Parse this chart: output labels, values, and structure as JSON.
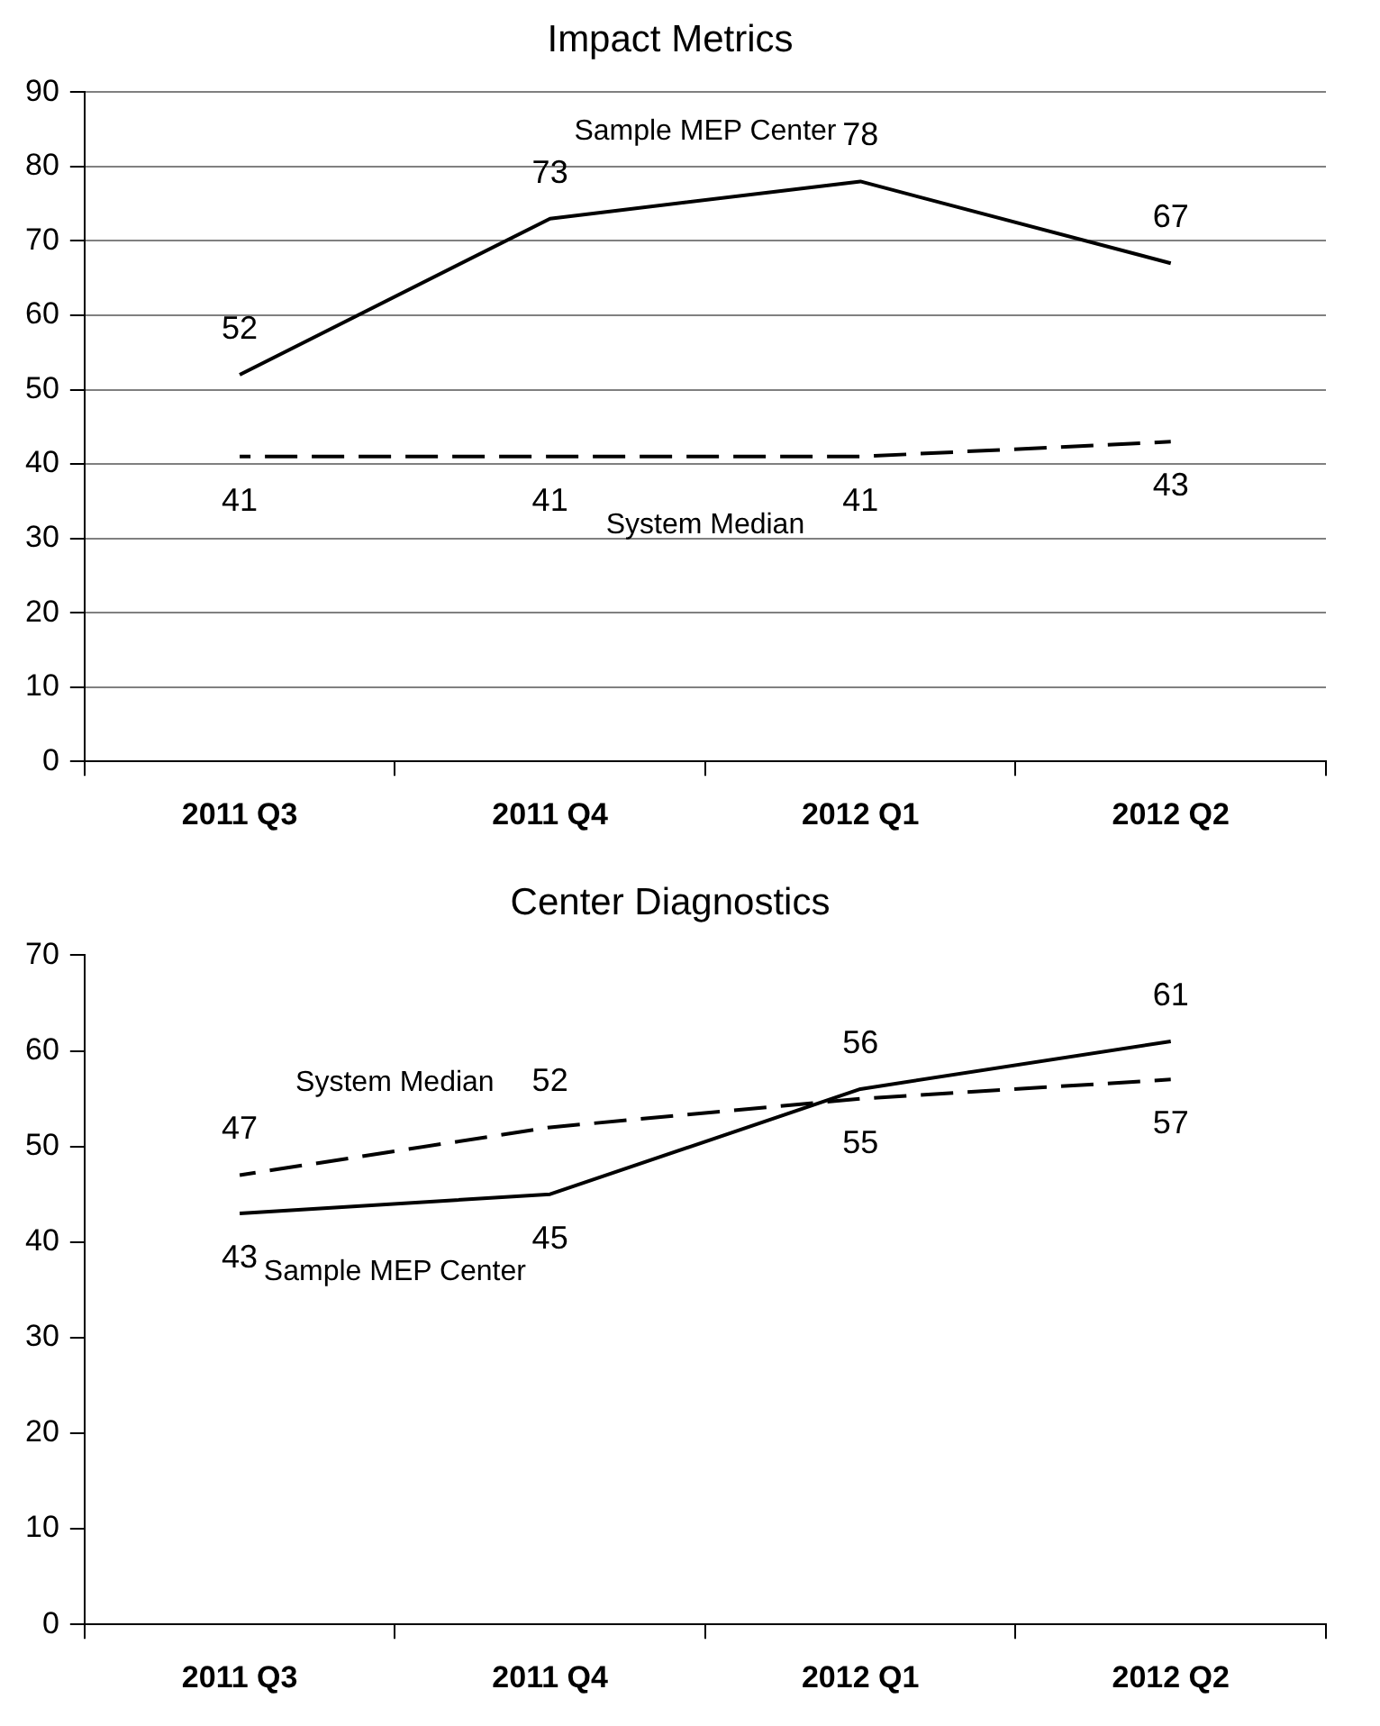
{
  "chart_data": [
    {
      "type": "line",
      "title": "Impact Metrics",
      "categories": [
        "2011 Q3",
        "2011 Q4",
        "2012 Q1",
        "2012 Q2"
      ],
      "series": [
        {
          "name": "Sample MEP Center",
          "color": "#000000",
          "line_style": "solid",
          "values": [
            52,
            73,
            78,
            67
          ]
        },
        {
          "name": "System Median",
          "color": "#000000",
          "line_style": "dashed",
          "values": [
            41,
            41,
            41,
            43
          ]
        }
      ],
      "ylim": [
        0,
        90
      ],
      "yticks": [
        0,
        10,
        20,
        30,
        40,
        50,
        60,
        70,
        80,
        90
      ],
      "grid": "y",
      "legend": false,
      "marker": "none",
      "data_labels": true
    },
    {
      "type": "line",
      "title": "Center Diagnostics",
      "categories": [
        "2011 Q3",
        "2011 Q4",
        "2012 Q1",
        "2012 Q2"
      ],
      "series": [
        {
          "name": "Sample MEP Center",
          "color": "#000000",
          "line_style": "solid",
          "values": [
            43,
            45,
            56,
            61
          ]
        },
        {
          "name": "System Median",
          "color": "#000000",
          "line_style": "dashed",
          "values": [
            47,
            52,
            55,
            57
          ]
        }
      ],
      "ylim": [
        0,
        70
      ],
      "yticks": [
        0,
        10,
        20,
        30,
        40,
        50,
        60,
        70
      ],
      "grid": false,
      "legend": false,
      "marker": "none",
      "data_labels": true
    }
  ]
}
